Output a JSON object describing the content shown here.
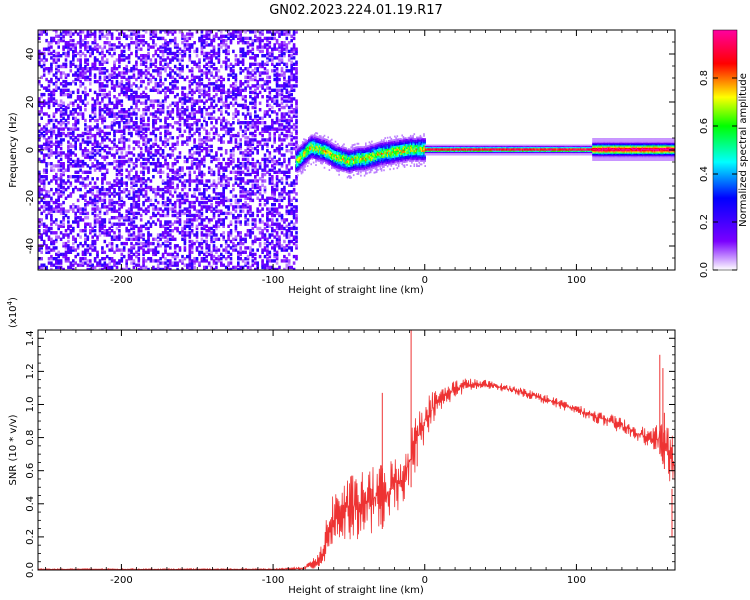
{
  "title": "GN02.2023.224.01.19.R17",
  "chart_data": [
    {
      "type": "heatmap",
      "xlabel": "Height of straight line (km)",
      "ylabel": "Frequency (Hz)",
      "xlim": [
        -255,
        165
      ],
      "ylim": [
        -50,
        50
      ],
      "x_ticks": [
        -200,
        -100,
        0,
        100
      ],
      "y_ticks": [
        -40,
        -20,
        0,
        20,
        40
      ],
      "colorbar": {
        "label": "Normalized spectral amplitude",
        "range": [
          0.0,
          1.0
        ],
        "ticks": [
          0.0,
          0.2,
          0.4,
          0.6,
          0.8
        ],
        "tick_labels": [
          "0.0",
          "0.2",
          "0.4",
          "0.6",
          "0.8"
        ],
        "colors": [
          "#ffffff",
          "#7a00ff",
          "#0000ff",
          "#00ffff",
          "#00ff00",
          "#ffff00",
          "#ff0000",
          "#ff00a0"
        ]
      },
      "regions": [
        {
          "description": "broadband noise",
          "x_range": [
            -255,
            -85
          ],
          "freq_range": [
            -50,
            50
          ],
          "amplitude_range": [
            0.05,
            0.25
          ]
        },
        {
          "description": "tone onset with wander",
          "x_range": [
            -85,
            0
          ],
          "centre_freq": [
            [
              -85,
              -5
            ],
            [
              -80,
              -2
            ],
            [
              -75,
              1
            ],
            [
              -70,
              0
            ],
            [
              -65,
              -1
            ],
            [
              -60,
              -3
            ],
            [
              -55,
              -4
            ],
            [
              -50,
              -5
            ],
            [
              -45,
              -4
            ],
            [
              -40,
              -4
            ],
            [
              -35,
              -3
            ],
            [
              -30,
              -2
            ],
            [
              -20,
              -1
            ],
            [
              -10,
              0
            ],
            [
              0,
              0
            ]
          ],
          "peak_amplitude": 0.7
        },
        {
          "description": "steady tone",
          "x_range": [
            0,
            165
          ],
          "centre_freq": 0,
          "peak_amplitude": 1.0
        }
      ]
    },
    {
      "type": "line",
      "xlabel": "Height of straight line (km)",
      "ylabel": "SNR (10 * v/v)",
      "y_scale_label": "(x10",
      "y_scale_exponent": "4",
      "y_scale_close": ")",
      "xlim": [
        -255,
        165
      ],
      "ylim": [
        0,
        1.45
      ],
      "x_ticks": [
        -200,
        -100,
        0,
        100
      ],
      "y_ticks": [
        0.0,
        0.2,
        0.4,
        0.6,
        0.8,
        1.0,
        1.2,
        1.4
      ],
      "y_tick_labels": [
        "0.0",
        "0.2",
        "0.4",
        "0.6",
        "0.8",
        "1.0",
        "1.2",
        "1.4"
      ],
      "series": [
        {
          "color": "#ee3333",
          "envelope": {
            "x": [
              -255,
              -100,
              -80,
              -70,
              -66,
              -62,
              -58,
              -55,
              -52,
              -48,
              -45,
              -40,
              -35,
              -30,
              -25,
              -20,
              -16,
              -12,
              -9,
              -6,
              -3,
              0,
              5,
              10,
              15,
              20,
              25,
              30,
              35,
              40,
              50,
              60,
              70,
              80,
              90,
              100,
              110,
              120,
              130,
              140,
              150,
              155,
              160,
              165
            ],
            "low": [
              0.0,
              0.0,
              0.0,
              0.005,
              0.04,
              0.12,
              0.15,
              0.17,
              0.16,
              0.18,
              0.18,
              0.2,
              0.22,
              0.24,
              0.26,
              0.3,
              0.38,
              0.45,
              0.5,
              0.6,
              0.68,
              0.78,
              0.88,
              0.95,
              1.0,
              1.04,
              1.06,
              1.08,
              1.09,
              1.09,
              1.08,
              1.06,
              1.03,
              1.0,
              0.97,
              0.94,
              0.9,
              0.86,
              0.82,
              0.78,
              0.72,
              0.7,
              0.55,
              0.45
            ],
            "high": [
              0.008,
              0.008,
              0.02,
              0.1,
              0.25,
              0.45,
              0.5,
              0.55,
              0.55,
              0.58,
              0.58,
              0.6,
              0.62,
              0.65,
              0.65,
              0.7,
              0.7,
              0.75,
              0.85,
              0.95,
              1.0,
              1.05,
              1.08,
              1.1,
              1.13,
              1.15,
              1.16,
              1.16,
              1.15,
              1.15,
              1.13,
              1.11,
              1.09,
              1.06,
              1.03,
              1.0,
              0.97,
              0.95,
              0.92,
              0.88,
              0.85,
              0.9,
              0.86,
              0.84
            ]
          },
          "spikes": [
            [
              -28,
              1.07
            ],
            [
              -9,
              1.45
            ],
            [
              -5,
              0.86
            ],
            [
              155,
              1.3
            ],
            [
              157,
              1.22
            ],
            [
              158,
              0.95
            ],
            [
              163,
              0.2
            ]
          ]
        }
      ]
    }
  ]
}
